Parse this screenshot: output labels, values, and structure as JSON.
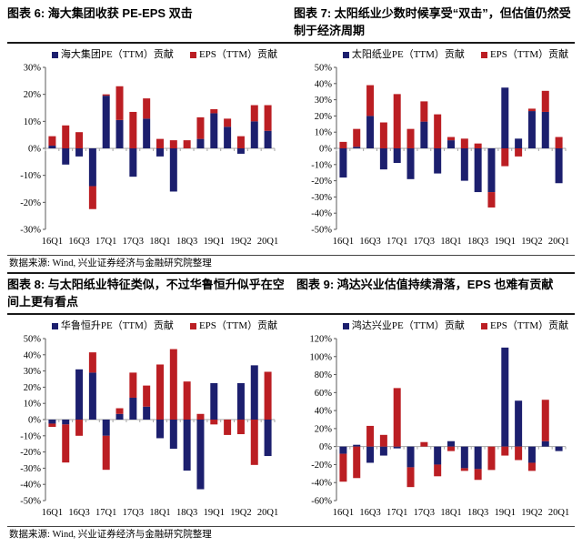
{
  "colors": {
    "pe_blue": "#1c1f6e",
    "eps_red": "#bb1e23",
    "zero_line": "#a6a6a6",
    "axis": "#595959",
    "rule": "#1a1a1a"
  },
  "figures": {
    "fig6": {
      "title": "图表 6: 海大集团收获 PE-EPS 双击"
    },
    "fig7": {
      "title": "图表 7: 太阳纸业少数时候享受“双击”，但估值仍然受制于经济周期"
    },
    "fig8": {
      "title": "图表 8: 与太阳纸业特征类似，不过华鲁恒升似乎在空间上更有看点"
    },
    "fig9": {
      "title": "图表 9: 鸿达兴业估值持续滑落，EPS 也难有贡献"
    }
  },
  "sources": {
    "top": "数据来源: Wind, 兴业证券经济与金融研究院整理",
    "bottom": "数据来源: Wind, 兴业证券经济与金融研究院整理"
  },
  "chart_data": [
    {
      "type": "bar",
      "stacked": true,
      "title": "海大集团 PE-EPS 贡献分解",
      "xlabel": "",
      "ylabel": "",
      "ylim": [
        -30,
        30
      ],
      "ytick_step": 10,
      "grid": false,
      "legend_position": "top",
      "categories": [
        "16Q1",
        "16Q2",
        "16Q3",
        "16Q4",
        "17Q1",
        "17Q2",
        "17Q3",
        "17Q4",
        "18Q1",
        "18Q2",
        "18Q3",
        "18Q4",
        "19Q1",
        "19Q2",
        "19Q3",
        "19Q4",
        "20Q1"
      ],
      "xtick_labels": [
        "16Q1",
        "16Q3",
        "17Q1",
        "17Q3",
        "18Q1",
        "18Q3",
        "19Q1",
        "19Q2",
        "20Q1"
      ],
      "series": [
        {
          "name": "海大集团PE（TTM）贡献",
          "color_key": "pe_blue",
          "values": [
            1,
            -6,
            -3,
            -14,
            19.5,
            10.5,
            -10.5,
            11,
            -3,
            -16,
            0,
            3.5,
            13,
            8,
            -2,
            10,
            6.5
          ]
        },
        {
          "name": "EPS（TTM）贡献",
          "color_key": "eps_red",
          "values": [
            3.5,
            8.5,
            6,
            -8.5,
            0.5,
            12.5,
            13.5,
            7.5,
            3.5,
            3,
            3,
            8,
            1.5,
            3,
            4.5,
            6,
            9.5
          ]
        }
      ]
    },
    {
      "type": "bar",
      "stacked": true,
      "title": "太阳纸业 PE-EPS 贡献分解",
      "xlabel": "",
      "ylabel": "",
      "ylim": [
        -50,
        50
      ],
      "ytick_step": 10,
      "grid": false,
      "legend_position": "top",
      "categories": [
        "16Q1",
        "16Q2",
        "16Q3",
        "16Q4",
        "17Q1",
        "17Q2",
        "17Q3",
        "17Q4",
        "18Q1",
        "18Q2",
        "18Q3",
        "18Q4",
        "19Q1",
        "19Q2",
        "19Q3",
        "19Q4",
        "20Q1"
      ],
      "xtick_labels": [
        "16Q1",
        "16Q3",
        "17Q1",
        "17Q3",
        "18Q1",
        "18Q3",
        "19Q1",
        "19Q2",
        "20Q1"
      ],
      "series": [
        {
          "name": "太阳纸业PE（TTM）贡献",
          "color_key": "pe_blue",
          "values": [
            -18,
            1,
            20,
            -13,
            -9,
            -19,
            16.5,
            -15.5,
            5,
            -20,
            -27,
            -27,
            37.5,
            6,
            23,
            22.5,
            -21.5
          ]
        },
        {
          "name": "EPS（TTM）贡献",
          "color_key": "eps_red",
          "values": [
            4,
            11,
            19,
            16,
            33.5,
            12,
            12.5,
            21,
            2,
            6,
            3,
            -9.5,
            -11,
            -5,
            1.5,
            13,
            7
          ]
        }
      ]
    },
    {
      "type": "bar",
      "stacked": true,
      "title": "华鲁恒升 PE-EPS 贡献分解",
      "xlabel": "",
      "ylabel": "",
      "ylim": [
        -50,
        50
      ],
      "ytick_step": 10,
      "grid": false,
      "legend_position": "top",
      "categories": [
        "16Q1",
        "16Q2",
        "16Q3",
        "16Q4",
        "17Q1",
        "17Q2",
        "17Q3",
        "17Q4",
        "18Q1",
        "18Q2",
        "18Q3",
        "18Q4",
        "19Q1",
        "19Q2",
        "19Q3",
        "19Q4",
        "20Q1"
      ],
      "xtick_labels": [
        "16Q1",
        "16Q3",
        "17Q1",
        "17Q3",
        "18Q1",
        "18Q3",
        "19Q1",
        "19Q2",
        "20Q1"
      ],
      "series": [
        {
          "name": "华鲁恒升PE（TTM）贡献",
          "color_key": "pe_blue",
          "values": [
            -2.5,
            -3,
            31,
            29,
            -10,
            3.5,
            13.5,
            8,
            -11.5,
            -18,
            -31.5,
            -43,
            22.5,
            0,
            22.5,
            33.5,
            -22.5
          ]
        },
        {
          "name": "EPS（TTM）贡献",
          "color_key": "eps_red",
          "values": [
            -2,
            -23.5,
            -10,
            12.5,
            -21,
            3.5,
            15.5,
            13,
            34,
            43.5,
            23.5,
            3.5,
            -3,
            -9.5,
            -9,
            -28,
            29.5
          ]
        }
      ]
    },
    {
      "type": "bar",
      "stacked": true,
      "title": "鸿达兴业 PE-EPS 贡献分解",
      "xlabel": "",
      "ylabel": "",
      "ylim": [
        -60,
        120
      ],
      "ytick_step": 20,
      "grid": false,
      "legend_position": "top",
      "categories": [
        "16Q1",
        "16Q2",
        "16Q3",
        "16Q4",
        "17Q1",
        "17Q2",
        "17Q3",
        "17Q4",
        "18Q1",
        "18Q2",
        "18Q3",
        "18Q4",
        "19Q1",
        "19Q2",
        "19Q3",
        "19Q4",
        "20Q1"
      ],
      "xtick_labels": [
        "16Q1",
        "16Q3",
        "17Q1",
        "17Q3",
        "18Q1",
        "18Q3",
        "19Q1",
        "19Q2",
        "20Q1"
      ],
      "series": [
        {
          "name": "鸿达兴业PE（TTM）贡献",
          "color_key": "pe_blue",
          "values": [
            -8,
            2,
            -18,
            -10,
            -2,
            -23,
            0,
            -20,
            6,
            -24,
            -25,
            0,
            110,
            51,
            -18,
            6,
            -5
          ]
        },
        {
          "name": "EPS（TTM）贡献",
          "color_key": "eps_red",
          "values": [
            -31,
            -35,
            23,
            13,
            65,
            -22,
            5,
            -13,
            -5,
            -3,
            -12,
            -26,
            -10,
            -15,
            -9,
            46,
            0
          ]
        }
      ]
    }
  ]
}
